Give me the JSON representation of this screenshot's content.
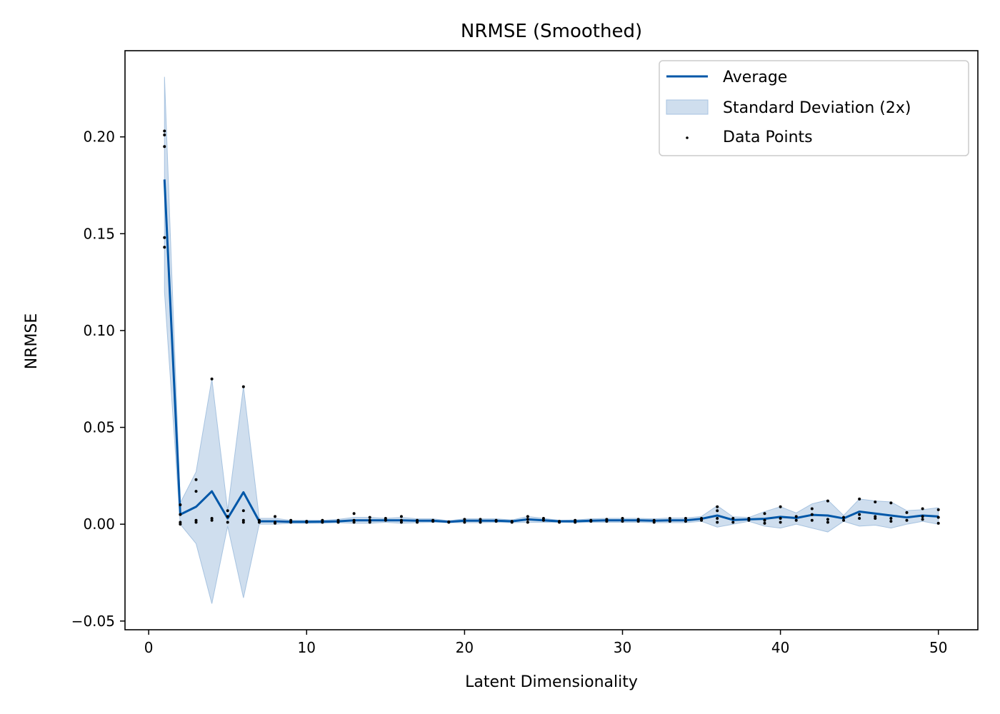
{
  "chart_data": {
    "type": "line",
    "title": "NRMSE (Smoothed)",
    "xlabel": "Latent Dimensionality",
    "ylabel": "NRMSE",
    "xlim": [
      -1.5,
      52.5
    ],
    "ylim": [
      -0.0545,
      0.2445
    ],
    "xticks": [
      0,
      10,
      20,
      30,
      40,
      50
    ],
    "xtick_labels": [
      "0",
      "10",
      "20",
      "30",
      "40",
      "50"
    ],
    "yticks": [
      -0.05,
      0.0,
      0.05,
      0.1,
      0.15,
      0.2
    ],
    "ytick_labels": [
      "−0.05",
      "0.00",
      "0.05",
      "0.10",
      "0.15",
      "0.20"
    ],
    "legend_position": "top-right",
    "colors": {
      "line": "#0057a8",
      "band": "#a7c3e0",
      "points": "#000000"
    },
    "legend": [
      {
        "label": "Average",
        "kind": "line"
      },
      {
        "label": "Standard Deviation (2x)",
        "kind": "band"
      },
      {
        "label": "Data Points",
        "kind": "points"
      }
    ],
    "series": [
      {
        "name": "Average",
        "x": [
          1,
          2,
          3,
          4,
          5,
          6,
          7,
          8,
          9,
          10,
          11,
          12,
          13,
          14,
          15,
          16,
          17,
          18,
          19,
          20,
          21,
          22,
          23,
          24,
          25,
          26,
          27,
          28,
          29,
          30,
          31,
          32,
          33,
          34,
          35,
          36,
          37,
          38,
          39,
          40,
          41,
          42,
          43,
          44,
          45,
          46,
          47,
          48,
          49,
          50
        ],
        "values": [
          0.178,
          0.005,
          0.009,
          0.017,
          0.003,
          0.0165,
          0.0015,
          0.0015,
          0.0012,
          0.0012,
          0.0013,
          0.0015,
          0.002,
          0.002,
          0.002,
          0.002,
          0.0018,
          0.0018,
          0.0012,
          0.0018,
          0.0018,
          0.0018,
          0.0015,
          0.0025,
          0.002,
          0.0015,
          0.0015,
          0.0018,
          0.002,
          0.002,
          0.002,
          0.0018,
          0.002,
          0.002,
          0.0028,
          0.0045,
          0.0022,
          0.0025,
          0.0028,
          0.0038,
          0.0032,
          0.0048,
          0.0045,
          0.003,
          0.0065,
          0.0055,
          0.0045,
          0.0035,
          0.0045,
          0.004
        ]
      },
      {
        "name": "Standard Deviation (2x)",
        "x": [
          1,
          2,
          3,
          4,
          5,
          6,
          7,
          8,
          9,
          10,
          11,
          12,
          13,
          14,
          15,
          16,
          17,
          18,
          19,
          20,
          21,
          22,
          23,
          24,
          25,
          26,
          27,
          28,
          29,
          30,
          31,
          32,
          33,
          34,
          35,
          36,
          37,
          38,
          39,
          40,
          41,
          42,
          43,
          44,
          45,
          46,
          47,
          48,
          49,
          50
        ],
        "lower": [
          0.12,
          0.0,
          -0.01,
          -0.041,
          -0.001,
          -0.038,
          0.0,
          0.0,
          0.0005,
          0.0005,
          0.0005,
          0.0008,
          0.0005,
          0.0005,
          0.001,
          0.0005,
          0.0008,
          0.001,
          0.0008,
          0.0008,
          0.0008,
          0.001,
          0.0008,
          0.001,
          0.001,
          0.001,
          0.0008,
          0.001,
          0.001,
          0.001,
          0.001,
          0.0008,
          0.0008,
          0.0008,
          0.0015,
          -0.0015,
          0.0,
          0.0015,
          -0.001,
          -0.002,
          0.0,
          -0.002,
          -0.004,
          0.0015,
          -0.001,
          -0.0005,
          -0.002,
          0.0,
          0.0015,
          0.0
        ]
      },
      {
        "name": "Standard Deviation (2x) upper",
        "x": [
          1,
          2,
          3,
          4,
          5,
          6,
          7,
          8,
          9,
          10,
          11,
          12,
          13,
          14,
          15,
          16,
          17,
          18,
          19,
          20,
          21,
          22,
          23,
          24,
          25,
          26,
          27,
          28,
          29,
          30,
          31,
          32,
          33,
          34,
          35,
          36,
          37,
          38,
          39,
          40,
          41,
          42,
          43,
          44,
          45,
          46,
          47,
          48,
          49,
          50
        ],
        "upper": [
          0.231,
          0.011,
          0.027,
          0.075,
          0.007,
          0.071,
          0.003,
          0.003,
          0.002,
          0.002,
          0.002,
          0.0025,
          0.0035,
          0.0035,
          0.003,
          0.0035,
          0.0028,
          0.0028,
          0.0018,
          0.0028,
          0.0028,
          0.0028,
          0.0022,
          0.004,
          0.003,
          0.002,
          0.0022,
          0.0028,
          0.003,
          0.003,
          0.003,
          0.0028,
          0.0032,
          0.0032,
          0.004,
          0.0095,
          0.0038,
          0.0035,
          0.0065,
          0.009,
          0.0058,
          0.0105,
          0.0125,
          0.0045,
          0.013,
          0.012,
          0.0115,
          0.007,
          0.0075,
          0.0085
        ]
      }
    ],
    "points": [
      {
        "x": 1,
        "y": 0.203
      },
      {
        "x": 1,
        "y": 0.201
      },
      {
        "x": 1,
        "y": 0.195
      },
      {
        "x": 1,
        "y": 0.148
      },
      {
        "x": 1,
        "y": 0.143
      },
      {
        "x": 2,
        "y": 0.01
      },
      {
        "x": 2,
        "y": 0.005
      },
      {
        "x": 2,
        "y": 0.001
      },
      {
        "x": 2,
        "y": 0.0
      },
      {
        "x": 3,
        "y": 0.023
      },
      {
        "x": 3,
        "y": 0.017
      },
      {
        "x": 3,
        "y": 0.002
      },
      {
        "x": 3,
        "y": 0.001
      },
      {
        "x": 4,
        "y": 0.075
      },
      {
        "x": 4,
        "y": 0.003
      },
      {
        "x": 4,
        "y": 0.002
      },
      {
        "x": 5,
        "y": 0.007
      },
      {
        "x": 5,
        "y": 0.004
      },
      {
        "x": 5,
        "y": 0.001
      },
      {
        "x": 6,
        "y": 0.071
      },
      {
        "x": 6,
        "y": 0.007
      },
      {
        "x": 6,
        "y": 0.002
      },
      {
        "x": 6,
        "y": 0.001
      },
      {
        "x": 7,
        "y": 0.002
      },
      {
        "x": 7,
        "y": 0.001
      },
      {
        "x": 8,
        "y": 0.004
      },
      {
        "x": 8,
        "y": 0.001
      },
      {
        "x": 8,
        "y": 0.0005
      },
      {
        "x": 9,
        "y": 0.002
      },
      {
        "x": 9,
        "y": 0.001
      },
      {
        "x": 10,
        "y": 0.0015
      },
      {
        "x": 10,
        "y": 0.001
      },
      {
        "x": 11,
        "y": 0.002
      },
      {
        "x": 11,
        "y": 0.001
      },
      {
        "x": 12,
        "y": 0.002
      },
      {
        "x": 12,
        "y": 0.001
      },
      {
        "x": 13,
        "y": 0.0055
      },
      {
        "x": 13,
        "y": 0.002
      },
      {
        "x": 13,
        "y": 0.001
      },
      {
        "x": 14,
        "y": 0.0035
      },
      {
        "x": 14,
        "y": 0.002
      },
      {
        "x": 14,
        "y": 0.001
      },
      {
        "x": 15,
        "y": 0.003
      },
      {
        "x": 15,
        "y": 0.002
      },
      {
        "x": 16,
        "y": 0.004
      },
      {
        "x": 16,
        "y": 0.002
      },
      {
        "x": 16,
        "y": 0.001
      },
      {
        "x": 17,
        "y": 0.002
      },
      {
        "x": 17,
        "y": 0.001
      },
      {
        "x": 18,
        "y": 0.002
      },
      {
        "x": 18,
        "y": 0.0015
      },
      {
        "x": 19,
        "y": 0.0012
      },
      {
        "x": 19,
        "y": 0.001
      },
      {
        "x": 20,
        "y": 0.0025
      },
      {
        "x": 20,
        "y": 0.001
      },
      {
        "x": 21,
        "y": 0.0025
      },
      {
        "x": 21,
        "y": 0.001
      },
      {
        "x": 22,
        "y": 0.002
      },
      {
        "x": 22,
        "y": 0.0015
      },
      {
        "x": 23,
        "y": 0.0015
      },
      {
        "x": 23,
        "y": 0.001
      },
      {
        "x": 24,
        "y": 0.004
      },
      {
        "x": 24,
        "y": 0.0025
      },
      {
        "x": 24,
        "y": 0.001
      },
      {
        "x": 25,
        "y": 0.003
      },
      {
        "x": 25,
        "y": 0.002
      },
      {
        "x": 26,
        "y": 0.0015
      },
      {
        "x": 26,
        "y": 0.001
      },
      {
        "x": 27,
        "y": 0.002
      },
      {
        "x": 27,
        "y": 0.001
      },
      {
        "x": 28,
        "y": 0.002
      },
      {
        "x": 28,
        "y": 0.0015
      },
      {
        "x": 29,
        "y": 0.0025
      },
      {
        "x": 29,
        "y": 0.0015
      },
      {
        "x": 30,
        "y": 0.003
      },
      {
        "x": 30,
        "y": 0.0015
      },
      {
        "x": 31,
        "y": 0.0025
      },
      {
        "x": 31,
        "y": 0.0015
      },
      {
        "x": 32,
        "y": 0.002
      },
      {
        "x": 32,
        "y": 0.001
      },
      {
        "x": 33,
        "y": 0.003
      },
      {
        "x": 33,
        "y": 0.0015
      },
      {
        "x": 34,
        "y": 0.003
      },
      {
        "x": 34,
        "y": 0.0015
      },
      {
        "x": 35,
        "y": 0.003
      },
      {
        "x": 35,
        "y": 0.002
      },
      {
        "x": 36,
        "y": 0.009
      },
      {
        "x": 36,
        "y": 0.007
      },
      {
        "x": 36,
        "y": 0.003
      },
      {
        "x": 36,
        "y": 0.001
      },
      {
        "x": 37,
        "y": 0.003
      },
      {
        "x": 37,
        "y": 0.001
      },
      {
        "x": 38,
        "y": 0.003
      },
      {
        "x": 38,
        "y": 0.002
      },
      {
        "x": 39,
        "y": 0.0055
      },
      {
        "x": 39,
        "y": 0.002
      },
      {
        "x": 39,
        "y": 0.0005
      },
      {
        "x": 40,
        "y": 0.009
      },
      {
        "x": 40,
        "y": 0.003
      },
      {
        "x": 40,
        "y": 0.001
      },
      {
        "x": 41,
        "y": 0.004
      },
      {
        "x": 41,
        "y": 0.002
      },
      {
        "x": 42,
        "y": 0.008
      },
      {
        "x": 42,
        "y": 0.005
      },
      {
        "x": 42,
        "y": 0.002
      },
      {
        "x": 43,
        "y": 0.012
      },
      {
        "x": 43,
        "y": 0.0025
      },
      {
        "x": 43,
        "y": 0.001
      },
      {
        "x": 44,
        "y": 0.0035
      },
      {
        "x": 44,
        "y": 0.002
      },
      {
        "x": 45,
        "y": 0.013
      },
      {
        "x": 45,
        "y": 0.005
      },
      {
        "x": 45,
        "y": 0.003
      },
      {
        "x": 46,
        "y": 0.0115
      },
      {
        "x": 46,
        "y": 0.004
      },
      {
        "x": 46,
        "y": 0.003
      },
      {
        "x": 47,
        "y": 0.011
      },
      {
        "x": 47,
        "y": 0.003
      },
      {
        "x": 47,
        "y": 0.0015
      },
      {
        "x": 48,
        "y": 0.006
      },
      {
        "x": 48,
        "y": 0.002
      },
      {
        "x": 49,
        "y": 0.008
      },
      {
        "x": 49,
        "y": 0.004
      },
      {
        "x": 49,
        "y": 0.0025
      },
      {
        "x": 50,
        "y": 0.0075
      },
      {
        "x": 50,
        "y": 0.0035
      },
      {
        "x": 50,
        "y": 0.0005
      }
    ]
  }
}
